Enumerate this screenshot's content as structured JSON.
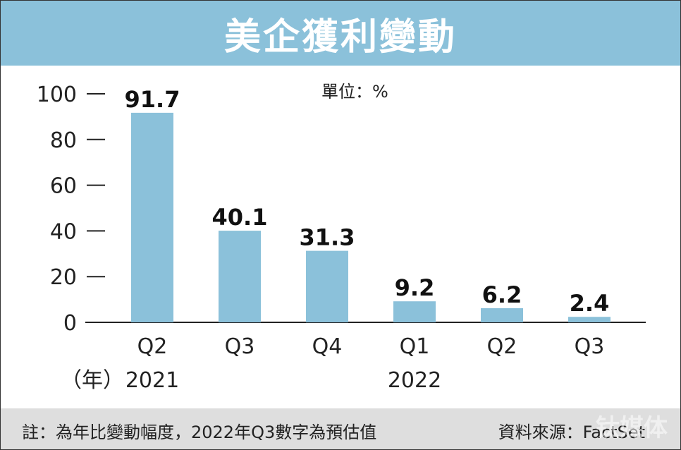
{
  "title": "美企獲利變動",
  "unit_label": "單位：%",
  "year_prefix": "（年）",
  "note": "註：為年比變動幅度，2022年Q3數字為預估值",
  "source": "資料來源：FactSet",
  "watermark": "钛媒体",
  "colors": {
    "bar": "#8bc1da",
    "title_bg": "#8bc1da",
    "footer_bg": "#dedede"
  },
  "chart_data": {
    "type": "bar",
    "categories": [
      "Q2",
      "Q3",
      "Q4",
      "Q1",
      "Q2",
      "Q3"
    ],
    "values": [
      91.7,
      40.1,
      31.3,
      9.2,
      6.2,
      2.4
    ],
    "value_labels": [
      "91.7",
      "40.1",
      "31.3",
      "9.2",
      "6.2",
      "2.4"
    ],
    "year_labels": [
      {
        "text": "2021",
        "category_index": 0
      },
      {
        "text": "2022",
        "category_index": 3
      }
    ],
    "yticks": [
      "0",
      "20",
      "40",
      "60",
      "80",
      "100"
    ],
    "ylim": [
      0,
      100
    ],
    "grid": false,
    "legend": "none"
  }
}
